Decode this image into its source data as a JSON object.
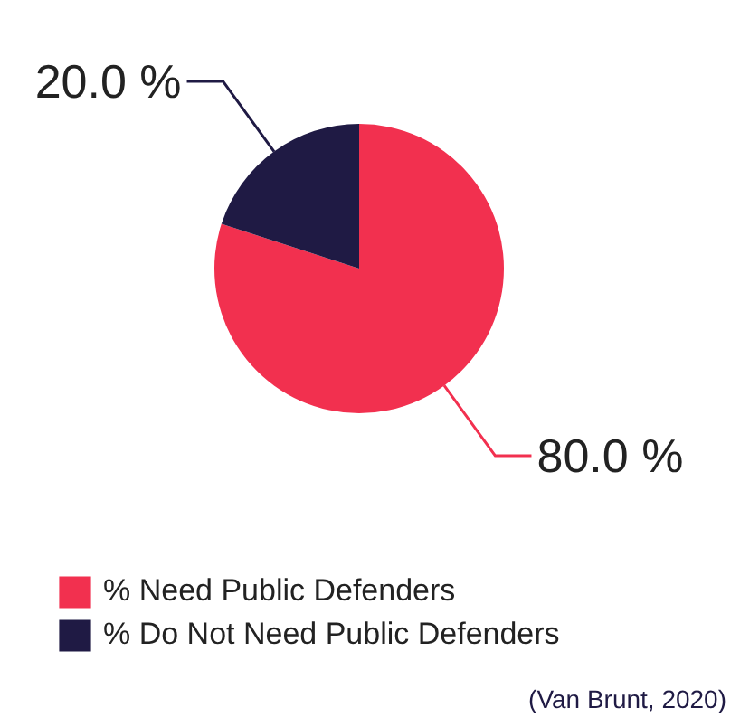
{
  "chart_data": {
    "type": "pie",
    "categories": [
      "% Need Public Defenders",
      "% Do Not Need Public Defenders"
    ],
    "values": [
      80,
      20
    ],
    "colors": [
      "#f2304f",
      "#1f1a44"
    ],
    "value_labels": [
      "80.0 %",
      "20.0 %"
    ],
    "legend": "bottom left",
    "annotations": [
      "(Van Brunt, 2020)"
    ]
  }
}
